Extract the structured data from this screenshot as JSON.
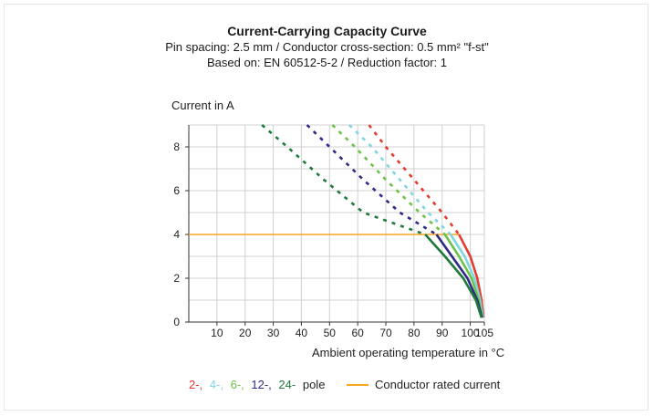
{
  "chart_data": {
    "type": "line",
    "title": "Current-Carrying Capacity Curve",
    "subtitle_lines": [
      "Pin spacing: 2.5 mm / Conductor cross-section: 0.5 mm² \"f-st\"",
      "Based on: EN 60512-5-2 / Reduction factor: 1"
    ],
    "ylabel": "Current in A",
    "xlabel": "Ambient operating temperature in °C",
    "xlim": [
      0,
      105
    ],
    "ylim": [
      0,
      9
    ],
    "x_ticks": [
      "10",
      "20",
      "30",
      "40",
      "50",
      "60",
      "70",
      "80",
      "90",
      "100",
      "105"
    ],
    "x_tick_values": [
      10,
      20,
      30,
      40,
      50,
      60,
      70,
      80,
      90,
      100,
      105
    ],
    "y_ticks": [
      "0",
      "2",
      "4",
      "6",
      "8"
    ],
    "y_tick_values": [
      0,
      2,
      4,
      6,
      8
    ],
    "grid": true,
    "rated_current": {
      "name": "Conductor rated current",
      "value": 4,
      "color": "#f5a623"
    },
    "series": [
      {
        "pole": "2-",
        "color": "#e53b2e",
        "dashed_until": 4,
        "points": [
          [
            64,
            9
          ],
          [
            70,
            8
          ],
          [
            80,
            6.5
          ],
          [
            90,
            5
          ],
          [
            96,
            4
          ],
          [
            100,
            3
          ],
          [
            102.5,
            2
          ],
          [
            104,
            1
          ],
          [
            104.7,
            0.2
          ]
        ]
      },
      {
        "pole": "4-",
        "color": "#7fd6e0",
        "dashed_until": 4,
        "points": [
          [
            57,
            9
          ],
          [
            65,
            8
          ],
          [
            75,
            6.5
          ],
          [
            85,
            5
          ],
          [
            93,
            4
          ],
          [
            98,
            3
          ],
          [
            101.5,
            2
          ],
          [
            103.5,
            1
          ],
          [
            104.5,
            0.2
          ]
        ]
      },
      {
        "pole": "6-",
        "color": "#6cc24a",
        "dashed_until": 4,
        "points": [
          [
            51,
            9
          ],
          [
            59,
            8
          ],
          [
            70,
            6.5
          ],
          [
            82,
            5
          ],
          [
            91,
            4
          ],
          [
            96,
            3
          ],
          [
            100.5,
            2
          ],
          [
            103,
            1
          ],
          [
            104.3,
            0.2
          ]
        ]
      },
      {
        "pole": "12-",
        "color": "#2e2a86",
        "dashed_until": 4,
        "points": [
          [
            42,
            9
          ],
          [
            50,
            8
          ],
          [
            62,
            6.5
          ],
          [
            75,
            5
          ],
          [
            88,
            4
          ],
          [
            93.5,
            3
          ],
          [
            99,
            2
          ],
          [
            102.5,
            1
          ],
          [
            104.2,
            0.2
          ]
        ]
      },
      {
        "pole": "24-",
        "color": "#1f7a3a",
        "dashed_until": 4,
        "points": [
          [
            26,
            9
          ],
          [
            35,
            8
          ],
          [
            48,
            6.5
          ],
          [
            62,
            5
          ],
          [
            84,
            4
          ],
          [
            91,
            3
          ],
          [
            97.5,
            2
          ],
          [
            102,
            1
          ],
          [
            104,
            0.2
          ]
        ]
      }
    ]
  },
  "legend": {
    "poles": [
      {
        "label": "2-,",
        "color": "#e53b2e"
      },
      {
        "label": "4-,",
        "color": "#7fd6e0"
      },
      {
        "label": "6-,",
        "color": "#6cc24a"
      },
      {
        "label": "12-,",
        "color": "#2e2a86"
      },
      {
        "label": "24-",
        "color": "#1f7a3a"
      }
    ],
    "suffix": "pole",
    "rated_label": "Conductor rated current",
    "rated_color": "#f5a623"
  }
}
